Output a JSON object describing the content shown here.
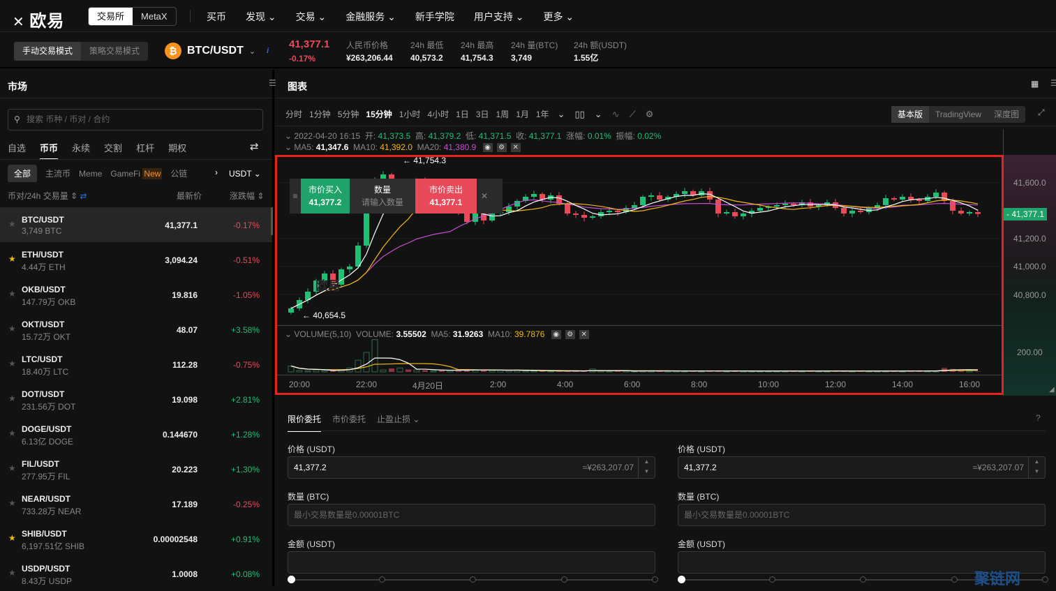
{
  "brand": {
    "logo": "欧易",
    "seg": [
      "交易所",
      "MetaX"
    ]
  },
  "nav": [
    "买币",
    "发现",
    "交易",
    "金融服务",
    "新手学院",
    "用户支持",
    "更多"
  ],
  "nav_dropdown": [
    false,
    true,
    true,
    true,
    false,
    true,
    true
  ],
  "mode": [
    "手动交易模式",
    "策略交易模式"
  ],
  "pair": {
    "name": "BTC/USDT",
    "icon": "₿",
    "info": "i"
  },
  "ticker": {
    "price": "41,377.1",
    "change": "-0.17%",
    "stats": [
      {
        "label": "人民币价格",
        "value": "¥263,206.44"
      },
      {
        "label": "24h 最低",
        "value": "40,573.2"
      },
      {
        "label": "24h 最高",
        "value": "41,754.3"
      },
      {
        "label": "24h 量(BTC)",
        "value": "3,749"
      },
      {
        "label": "24h 额(USDT)",
        "value": "1.55亿"
      }
    ]
  },
  "market": {
    "title": "市场",
    "search_placeholder": "搜索 币种 / 币对 / 合约",
    "tabs": [
      "自选",
      "币币",
      "永续",
      "交割",
      "杠杆",
      "期权"
    ],
    "subtabs": [
      "全部",
      "主流币",
      "Meme",
      "GameFi",
      "公链"
    ],
    "new_badge": "New",
    "quote": "USDT",
    "cols": [
      "币对/24h 交易量",
      "最新价",
      "涨跌幅"
    ],
    "rows": [
      {
        "pair": "BTC/USDT",
        "vol": "3,749 BTC",
        "last": "41,377.1",
        "chg": "-0.17%",
        "fav": false
      },
      {
        "pair": "ETH/USDT",
        "vol": "4.44万 ETH",
        "last": "3,094.24",
        "chg": "-0.51%",
        "fav": true
      },
      {
        "pair": "OKB/USDT",
        "vol": "147.79万 OKB",
        "last": "19.816",
        "chg": "-1.05%",
        "fav": false
      },
      {
        "pair": "OKT/USDT",
        "vol": "15.72万 OKT",
        "last": "48.07",
        "chg": "+3.58%",
        "fav": false
      },
      {
        "pair": "LTC/USDT",
        "vol": "18.40万 LTC",
        "last": "112.28",
        "chg": "-0.75%",
        "fav": false
      },
      {
        "pair": "DOT/USDT",
        "vol": "231.56万 DOT",
        "last": "19.098",
        "chg": "+2.81%",
        "fav": false
      },
      {
        "pair": "DOGE/USDT",
        "vol": "6.13亿 DOGE",
        "last": "0.144670",
        "chg": "+1.28%",
        "fav": false
      },
      {
        "pair": "FIL/USDT",
        "vol": "277.95万 FIL",
        "last": "20.223",
        "chg": "+1.30%",
        "fav": false
      },
      {
        "pair": "NEAR/USDT",
        "vol": "733.28万 NEAR",
        "last": "17.189",
        "chg": "-0.25%",
        "fav": false
      },
      {
        "pair": "SHIB/USDT",
        "vol": "6,197.51亿 SHIB",
        "last": "0.00002548",
        "chg": "+0.91%",
        "fav": true
      },
      {
        "pair": "USDP/USDT",
        "vol": "8.43万 USDP",
        "last": "1.0008",
        "chg": "+0.08%",
        "fav": false
      }
    ]
  },
  "chart": {
    "title": "图表",
    "timeframes": [
      "分时",
      "1分钟",
      "5分钟",
      "15分钟",
      "1小时",
      "4小时",
      "1日",
      "3日",
      "1周",
      "1月",
      "1年"
    ],
    "active_tf": "15分钟",
    "views": [
      "基本版",
      "TradingView",
      "深度图"
    ],
    "ohlc": {
      "time": "2022-04-20 16:15",
      "open_l": "开:",
      "open": "41,373.5",
      "high_l": "高:",
      "high": "41,379.2",
      "low_l": "低:",
      "low": "41,371.5",
      "close_l": "收:",
      "close": "41,377.1",
      "chg_l": "涨幅:",
      "chg": "0.01%",
      "amp_l": "振幅:",
      "amp": "0.02%"
    },
    "ma": {
      "ma5_l": "MA5:",
      "ma5": "41,347.6",
      "ma10_l": "MA10:",
      "ma10": "41,392.0",
      "ma20_l": "MA20:",
      "ma20": "41,380.9"
    },
    "volume": {
      "name": "VOLUME(5,10)",
      "vol_l": "VOLUME:",
      "vol": "3.55502",
      "ma5_l": "MA5:",
      "ma5": "31.9263",
      "ma10_l": "MA10:",
      "ma10": "39.7876"
    },
    "high_mark": "← 41,754.3",
    "low_mark": "← 40,654.5",
    "watermark": "欧易",
    "price_ticks": [
      "41,600.0",
      "41,200.0",
      "41,000.0",
      "40,800.0"
    ],
    "vol_tick": "200.00",
    "current": "41,377.1",
    "time_ticks": [
      "20:00",
      "22:00",
      "4月20日",
      "2:00",
      "4:00",
      "6:00",
      "8:00",
      "10:00",
      "12:00",
      "14:00",
      "16:00"
    ],
    "colors": {
      "up": "#1fbf75",
      "down": "#e84a5a",
      "ma5": "#ffffff",
      "ma10": "#f0b90b",
      "ma20": "#c64fd1"
    },
    "closes": [
      40700,
      40760,
      40820,
      40900,
      40950,
      40870,
      40980,
      41000,
      41150,
      41450,
      41620,
      41660,
      41560,
      41600,
      41520,
      41620,
      41480,
      41500,
      41430,
      41450,
      41380,
      41320,
      41400,
      41330,
      41380,
      41390,
      41430,
      41470,
      41500,
      41520,
      41480,
      41510,
      41450,
      41380,
      41370,
      41350,
      41360,
      41390,
      41400,
      41390,
      41420,
      41440,
      41500,
      41510,
      41480,
      41500,
      41520,
      41540,
      41510,
      41540,
      41480,
      41380,
      41390,
      41360,
      41380,
      41400,
      41420,
      41430,
      41440,
      41450,
      41440,
      41460,
      41430,
      41440,
      41460,
      41420,
      41380,
      41400,
      41390,
      41420,
      41440,
      41490,
      41480,
      41500,
      41480,
      41470,
      41500,
      41530,
      41470,
      41400,
      41380,
      41390,
      41377.1
    ],
    "volumes": [
      60,
      15,
      10,
      20,
      12,
      18,
      22,
      40,
      120,
      200,
      330,
      20,
      35,
      40,
      25,
      22,
      18,
      10,
      20,
      15,
      25,
      20,
      18,
      22,
      15,
      20,
      15,
      18,
      12,
      10,
      10,
      8,
      12,
      10,
      8,
      10,
      30,
      10,
      8,
      9,
      10,
      8,
      12,
      10,
      8,
      10,
      12,
      9,
      10,
      8,
      12,
      10,
      8,
      10,
      9,
      8,
      10,
      8,
      9,
      10,
      8,
      9,
      10,
      8,
      9,
      10,
      8,
      10,
      9,
      8,
      10,
      8,
      9,
      10,
      12,
      8,
      10,
      9,
      40,
      30,
      20,
      12,
      4
    ]
  },
  "quick": {
    "buy_l": "市价买入",
    "buy": "41,377.2",
    "qty_l": "数量",
    "qty_ph": "请输入数量",
    "sell_l": "市价卖出",
    "sell": "41,377.1"
  },
  "order": {
    "tabs": [
      "限价委托",
      "市价委托",
      "止盈止损"
    ],
    "price_l": "价格 (USDT)",
    "price": "41,377.2",
    "price_cny": "≈¥263,207.07",
    "qty_l": "数量 (BTC)",
    "qty_ph": "最小交易数量是0.00001BTC",
    "amt_l": "金额 (USDT)"
  },
  "watermark": "聚链网"
}
